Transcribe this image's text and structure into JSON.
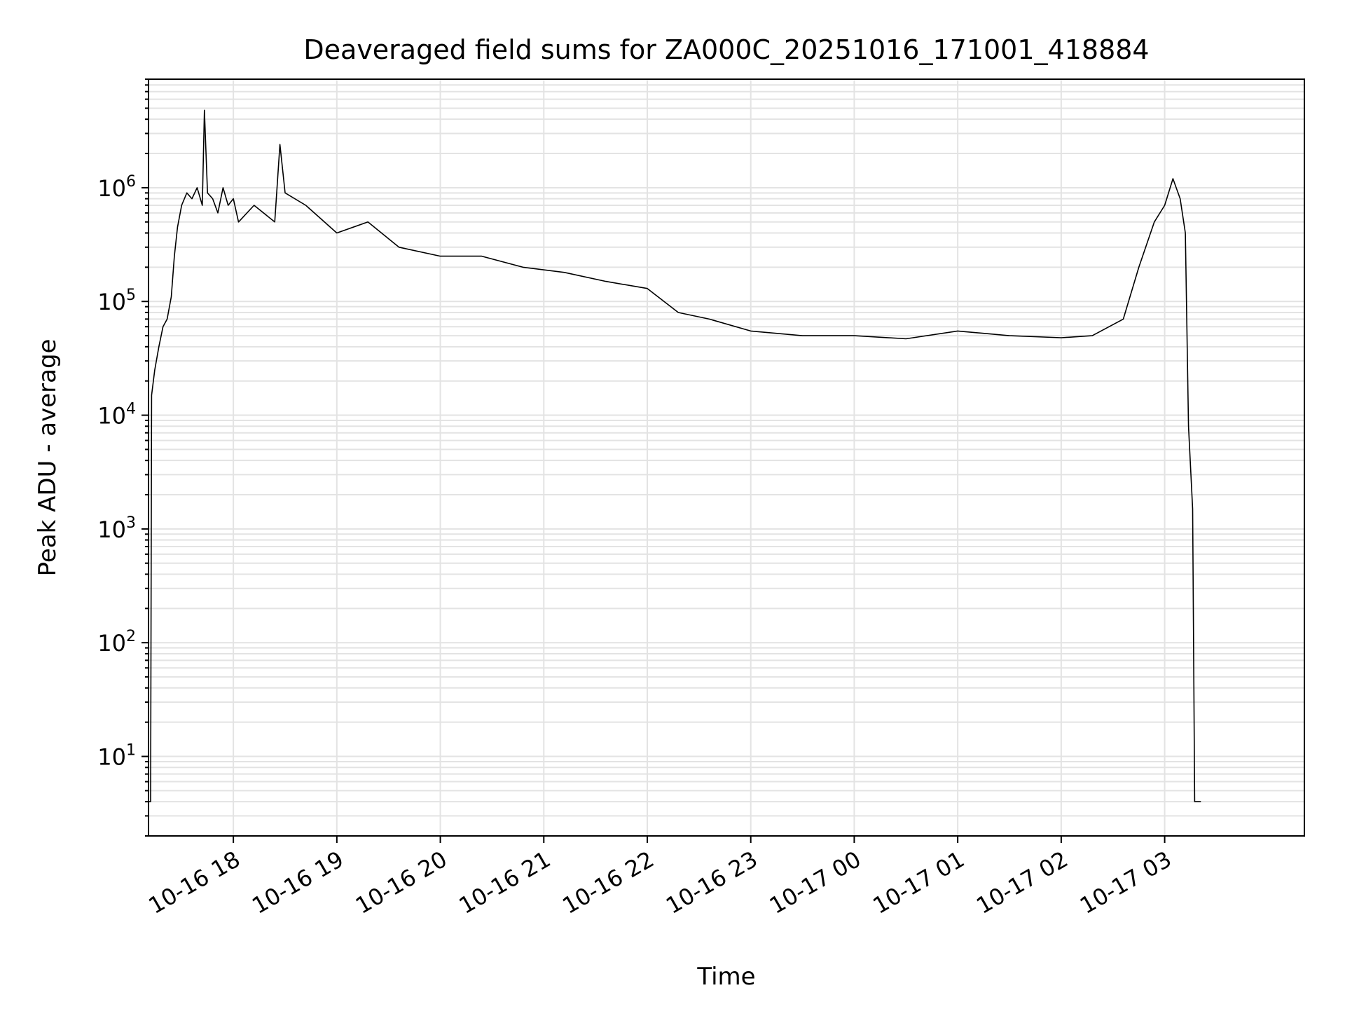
{
  "chart_data": {
    "type": "line",
    "title": "Deaveraged field sums for ZA000C_20251016_171001_418884",
    "xlabel": "Time",
    "ylabel": "Peak ADU - average",
    "yscale": "log",
    "ylim": [
      2,
      9000000
    ],
    "xlim_hours": [
      -0.82,
      10.35
    ],
    "x_tick_labels": [
      "10-16 18",
      "10-16 19",
      "10-16 20",
      "10-16 21",
      "10-16 22",
      "10-16 23",
      "10-17 00",
      "10-17 01",
      "10-17 02",
      "10-17 03"
    ],
    "x_tick_hours": [
      0,
      1,
      2,
      3,
      4,
      5,
      6,
      7,
      8,
      9
    ],
    "y_tick_values": [
      10,
      100,
      1000,
      10000,
      100000,
      1000000
    ],
    "y_tick_labels": [
      {
        "base": "10",
        "exp": "1"
      },
      {
        "base": "10",
        "exp": "2"
      },
      {
        "base": "10",
        "exp": "3"
      },
      {
        "base": "10",
        "exp": "4"
      },
      {
        "base": "10",
        "exp": "5"
      },
      {
        "base": "10",
        "exp": "6"
      }
    ],
    "grid": true,
    "series": [
      {
        "name": "Peak ADU - average",
        "color": "#000000",
        "points": [
          [
            -0.82,
            4
          ],
          [
            -0.8,
            4
          ],
          [
            -0.79,
            15000
          ],
          [
            -0.76,
            25000
          ],
          [
            -0.72,
            40000
          ],
          [
            -0.68,
            60000
          ],
          [
            -0.64,
            70000
          ],
          [
            -0.6,
            110000
          ],
          [
            -0.57,
            250000
          ],
          [
            -0.54,
            450000
          ],
          [
            -0.5,
            700000
          ],
          [
            -0.45,
            900000
          ],
          [
            -0.4,
            800000
          ],
          [
            -0.35,
            1000000
          ],
          [
            -0.3,
            700000
          ],
          [
            -0.28,
            4800000
          ],
          [
            -0.25,
            900000
          ],
          [
            -0.2,
            800000
          ],
          [
            -0.15,
            600000
          ],
          [
            -0.1,
            1000000
          ],
          [
            -0.05,
            700000
          ],
          [
            0.0,
            800000
          ],
          [
            0.05,
            500000
          ],
          [
            0.2,
            700000
          ],
          [
            0.4,
            500000
          ],
          [
            0.45,
            2400000
          ],
          [
            0.5,
            900000
          ],
          [
            0.7,
            700000
          ],
          [
            1.0,
            400000
          ],
          [
            1.3,
            500000
          ],
          [
            1.6,
            300000
          ],
          [
            2.0,
            250000
          ],
          [
            2.4,
            250000
          ],
          [
            2.8,
            200000
          ],
          [
            3.2,
            180000
          ],
          [
            3.6,
            150000
          ],
          [
            4.0,
            130000
          ],
          [
            4.3,
            80000
          ],
          [
            4.6,
            70000
          ],
          [
            5.0,
            55000
          ],
          [
            5.5,
            50000
          ],
          [
            6.0,
            50000
          ],
          [
            6.5,
            47000
          ],
          [
            7.0,
            55000
          ],
          [
            7.5,
            50000
          ],
          [
            8.0,
            48000
          ],
          [
            8.3,
            50000
          ],
          [
            8.6,
            70000
          ],
          [
            8.75,
            200000
          ],
          [
            8.9,
            500000
          ],
          [
            9.0,
            700000
          ],
          [
            9.08,
            1200000
          ],
          [
            9.15,
            800000
          ],
          [
            9.2,
            400000
          ],
          [
            9.23,
            8000
          ],
          [
            9.27,
            1500
          ],
          [
            9.29,
            4
          ],
          [
            9.35,
            4
          ]
        ]
      }
    ]
  }
}
